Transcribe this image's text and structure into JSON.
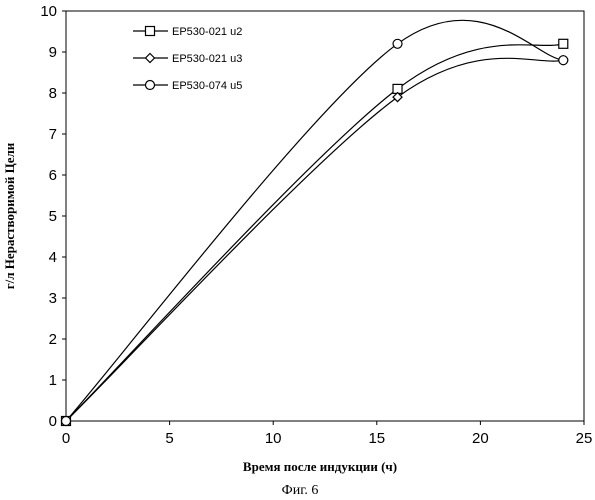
{
  "chart_data": {
    "type": "line",
    "xlabel": "Время после индукции (ч)",
    "ylabel": "г/л Нерастворимой Цели",
    "xlim": [
      0,
      25
    ],
    "ylim": [
      0,
      10
    ],
    "xticks": [
      "0",
      "5",
      "10",
      "15",
      "20",
      "25"
    ],
    "yticks": [
      "0",
      "1",
      "2",
      "3",
      "4",
      "5",
      "6",
      "7",
      "8",
      "9",
      "10"
    ],
    "grid": false,
    "legend_position": "top-left",
    "series": [
      {
        "name": "EP530-021 u2",
        "marker": "square",
        "x": [
          0,
          16,
          24
        ],
        "y": [
          0,
          8.1,
          9.2
        ]
      },
      {
        "name": "EP530-021 u3",
        "marker": "diamond",
        "x": [
          0,
          16,
          24
        ],
        "y": [
          0,
          7.9,
          8.8
        ]
      },
      {
        "name": "EP530-074 u5",
        "marker": "circle",
        "x": [
          0,
          16,
          24
        ],
        "y": [
          0,
          9.2,
          8.8
        ]
      }
    ]
  },
  "caption": "Фиг. 6"
}
